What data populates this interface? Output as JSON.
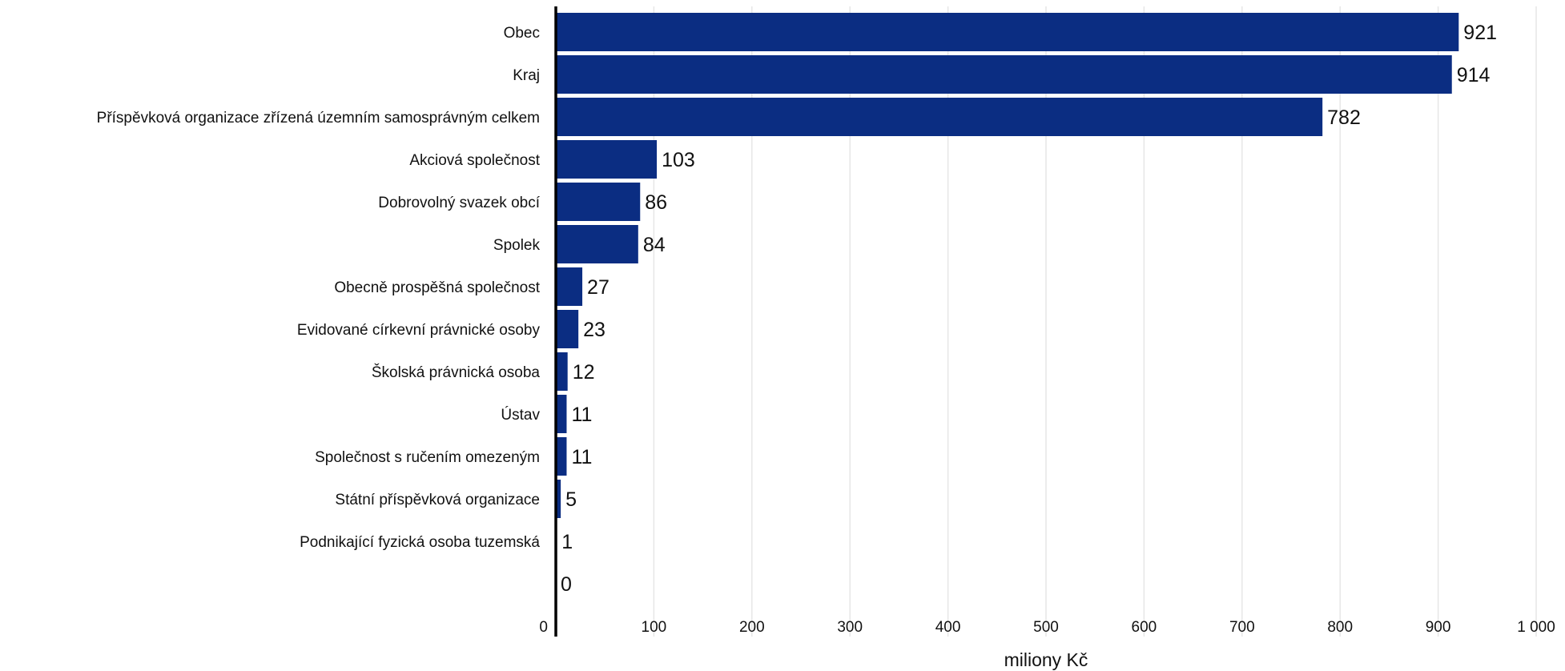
{
  "chart_data": {
    "type": "bar",
    "orientation": "horizontal",
    "categories": [
      "Obec",
      "Kraj",
      "Příspěvková organizace zřízená územním samosprávným celkem",
      "Akciová společnost",
      "Dobrovolný svazek obcí",
      "Spolek",
      "Obecně prospěšná společnost",
      "Evidované církevní právnické osoby",
      "Školská právnická osoba",
      "Ústav",
      "Společnost s ručením omezeným",
      "Státní příspěvková organizace",
      "Podnikající fyzická osoba tuzemská",
      ""
    ],
    "values": [
      921,
      914,
      782,
      103,
      86,
      84,
      27,
      23,
      12,
      11,
      11,
      5,
      1,
      0
    ],
    "xlabel": "miliony Kč",
    "ylabel": "",
    "xlim": [
      0,
      1000
    ],
    "xticks": [
      0,
      100,
      200,
      300,
      400,
      500,
      600,
      700,
      800,
      900,
      1000
    ],
    "xtick_labels": [
      "0",
      "100",
      "200",
      "300",
      "400",
      "500",
      "600",
      "700",
      "800",
      "900",
      "1 000"
    ],
    "grid": true,
    "bar_color": "#0b2d82"
  }
}
